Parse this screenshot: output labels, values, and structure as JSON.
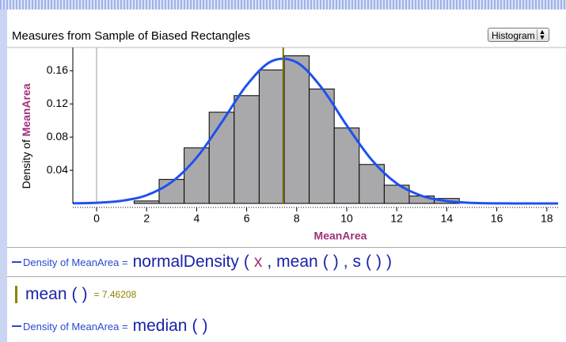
{
  "window": {
    "title": "Measures from Sample of Biased Rectangles",
    "dropdown": "Histogram"
  },
  "chart_data": {
    "type": "histogram",
    "y_label": {
      "prefix": "Density of",
      "attribute": "MeanArea"
    },
    "x_label": "MeanArea",
    "bins": [
      1.5,
      2.5,
      3.5,
      4.5,
      5.5,
      6.5,
      7.5,
      8.5,
      9.5,
      10.5,
      11.5,
      12.5,
      13.5,
      14.5
    ],
    "values": [
      0.003,
      0.029,
      0.067,
      0.11,
      0.13,
      0.161,
      0.178,
      0.138,
      0.091,
      0.047,
      0.022,
      0.009,
      0.006
    ],
    "color": "#a9a9ab",
    "curve": {
      "color": "#2050f0",
      "x": [
        -0.95,
        0,
        1,
        2,
        3,
        4,
        5,
        6,
        7,
        8,
        9,
        10,
        11,
        12,
        13,
        14,
        15,
        16,
        17,
        18,
        18.45
      ],
      "values": [
        0.0002,
        0.0008,
        0.0032,
        0.0099,
        0.0258,
        0.0553,
        0.0977,
        0.1425,
        0.1715,
        0.1701,
        0.1394,
        0.0941,
        0.0525,
        0.0241,
        0.0092,
        0.0029,
        0.0007,
        0.0001,
        0,
        0,
        0
      ]
    },
    "mean": 7.46208,
    "mean_color": "#7c7400",
    "xlim": [
      -0.95,
      18.45
    ],
    "ylim": [
      0,
      0.188
    ],
    "xticks": [
      0,
      2,
      4,
      6,
      8,
      10,
      12,
      14,
      16,
      18
    ],
    "yticks": [
      0.04,
      0.08,
      0.12,
      0.16
    ]
  },
  "formulas": [
    {
      "lhs": "Density of MeanArea =",
      "tokens": [
        "normalDensity",
        "(",
        "x",
        ",",
        "mean",
        "(",
        ")",
        ",",
        "s",
        "(",
        ")",
        ")"
      ]
    },
    {
      "tokens": [
        "mean",
        "(",
        ")"
      ],
      "result": "= 7.46208"
    },
    {
      "lhs": "Density of MeanArea =",
      "tokens": [
        "median",
        "(",
        ")"
      ]
    }
  ]
}
